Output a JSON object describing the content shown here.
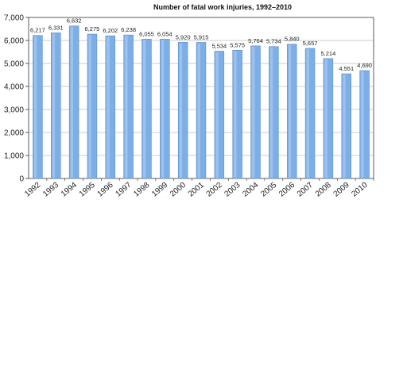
{
  "chart_data": {
    "type": "bar",
    "title": "Number of fatal work injuries, 1992–2010",
    "categories": [
      "1992",
      "1993",
      "1994",
      "1995",
      "1996",
      "1997",
      "1998",
      "1999",
      "2000",
      "2001",
      "2002",
      "2003",
      "2004",
      "2005",
      "2006",
      "2007",
      "2008",
      "2009",
      "2010"
    ],
    "values": [
      6217,
      6331,
      6632,
      6275,
      6202,
      6238,
      6055,
      6054,
      5920,
      5915,
      5534,
      5575,
      5764,
      5734,
      5840,
      5657,
      5214,
      4551,
      4690
    ],
    "value_labels": [
      "6,217",
      "6,331",
      "6,632",
      "6,275",
      "6,202",
      "6,238",
      "6,055",
      "6,054",
      "5,920",
      "5,915",
      "5,534",
      "5,575",
      "5,764",
      "5,734",
      "5,840",
      "5,657",
      "5,214",
      "4,551",
      "4,690"
    ],
    "y_ticks": [
      0,
      1000,
      2000,
      3000,
      4000,
      5000,
      6000,
      7000
    ],
    "y_tick_labels": [
      "0",
      "1,000",
      "2,000",
      "3,000",
      "4,000",
      "5,000",
      "6,000",
      "7,000"
    ],
    "ylim": [
      0,
      7000
    ],
    "xlabel": "",
    "ylabel": "",
    "grid": true,
    "legend": "none",
    "colors": {
      "bar_fill": "#7eaee6",
      "bar_stroke": "#5b8fcf",
      "bar_highlight": "#a9cbf1",
      "grid": "#999999",
      "axis": "#333333",
      "text": "#222222"
    }
  }
}
